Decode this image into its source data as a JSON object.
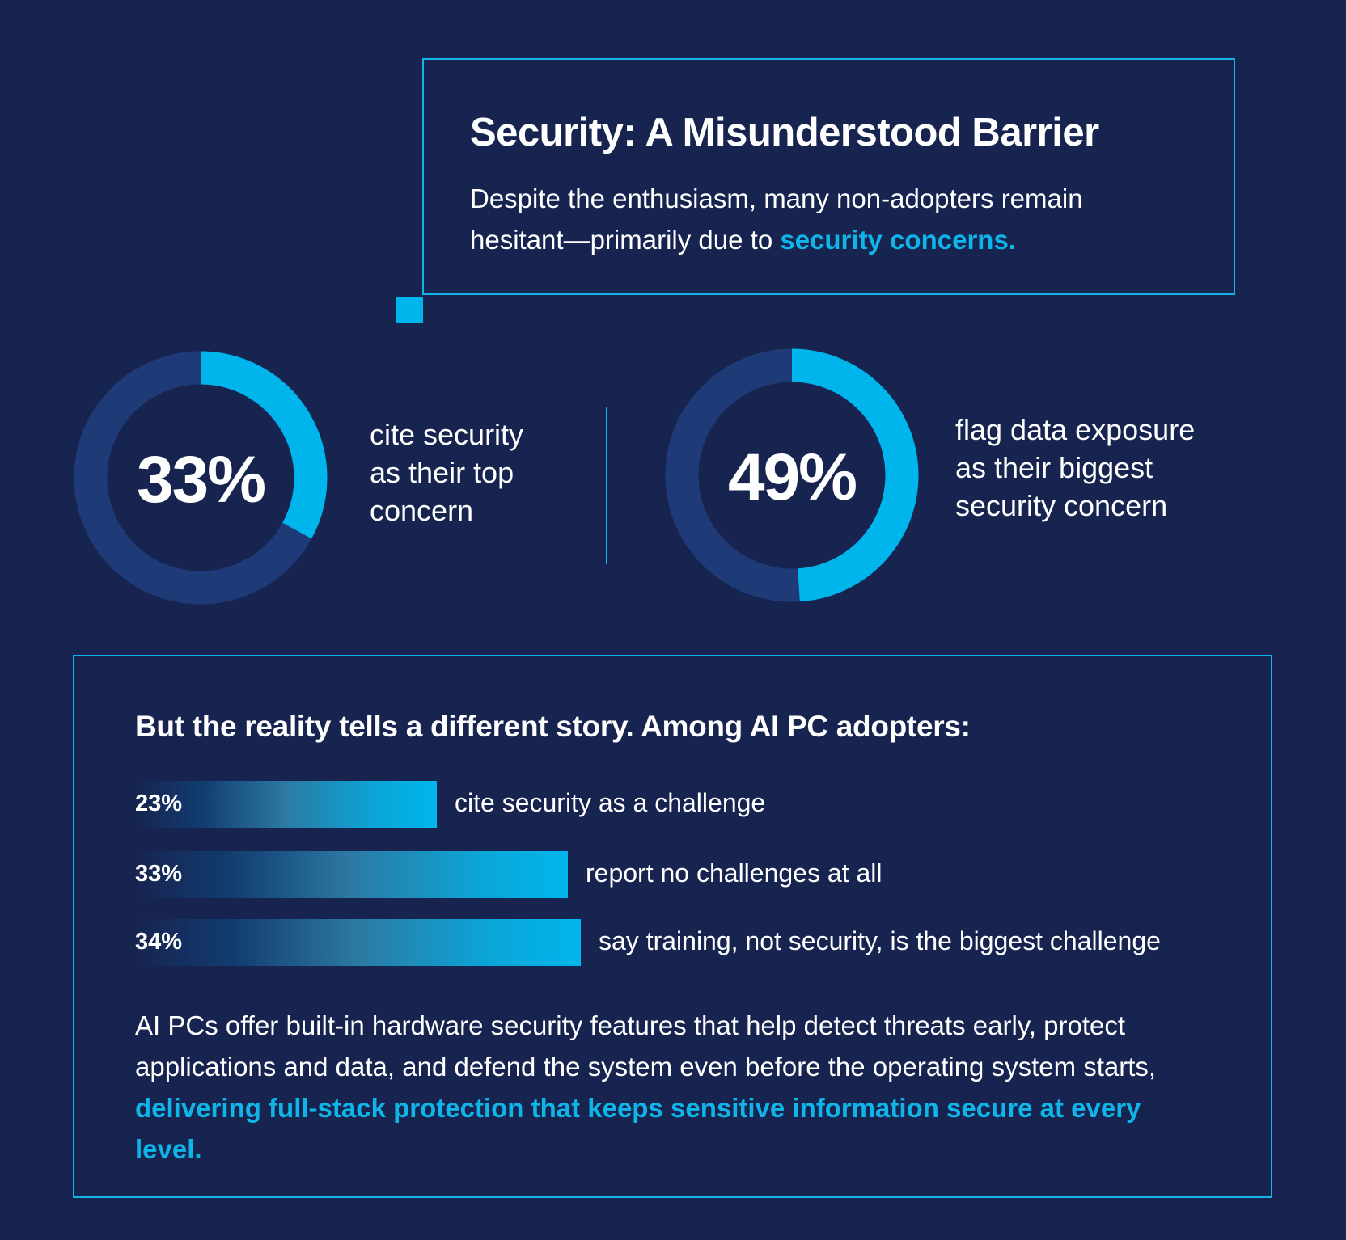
{
  "colors": {
    "background": "#172450",
    "accent": "#00b4ec",
    "donut_track": "#1e3b78",
    "border": "#10b4e6",
    "text": "#ffffff"
  },
  "header": {
    "title": "Security: A Misunderstood Barrier",
    "body_plain": "Despite the enthusiasm, many non-adopters remain hesitant—primarily due to ",
    "body_highlight": "security concerns."
  },
  "donuts": [
    {
      "value_label": "33%",
      "fraction": 0.33,
      "caption": "cite security\nas their top\nconcern"
    },
    {
      "value_label": "49%",
      "fraction": 0.49,
      "caption": "flag data exposure\nas their biggest\nsecurity concern"
    }
  ],
  "reality": {
    "heading": "But the reality tells a different story. Among AI PC adopters:",
    "closing_plain": "AI PCs offer built-in hardware security features that help detect threats early, protect applications and data, and defend the system even before the operating system starts, ",
    "closing_highlight": "delivering full-stack protection that keeps sensitive information secure at every level."
  },
  "chart_data": [
    {
      "type": "pie",
      "values": [
        33,
        67
      ],
      "labels": [
        "33%",
        ""
      ],
      "annotation": "cite security as their top concern"
    },
    {
      "type": "pie",
      "values": [
        49,
        51
      ],
      "labels": [
        "49%",
        ""
      ],
      "annotation": "flag data exposure as their biggest security concern"
    },
    {
      "type": "bar",
      "orientation": "horizontal",
      "categories": [
        "cite security as a challenge",
        "report no challenges at all",
        "say training, not security, is the biggest challenge"
      ],
      "values": [
        23,
        33,
        34
      ],
      "value_labels": [
        "23%",
        "33%",
        "34%"
      ]
    }
  ]
}
